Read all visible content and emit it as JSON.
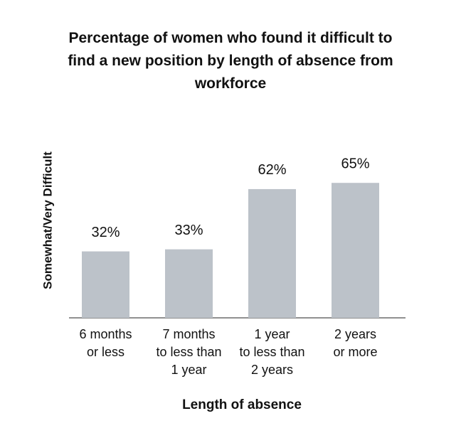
{
  "chart_data": {
    "type": "bar",
    "title": "Percentage of women who found it difficult to find a new position by length of absence from workforce",
    "x_label": "Length of absence",
    "y_label": "Somewhat/Very Difficult",
    "categories": [
      [
        "6 months",
        "or less"
      ],
      [
        "7 months",
        "to less than",
        "1 year"
      ],
      [
        "1 year",
        "to less than",
        "2 years"
      ],
      [
        "2 years",
        "or more"
      ]
    ],
    "values": [
      32,
      33,
      62,
      65
    ],
    "value_labels": [
      "32%",
      "33%",
      "62%",
      "65%"
    ],
    "color": "#bcc2c9"
  }
}
